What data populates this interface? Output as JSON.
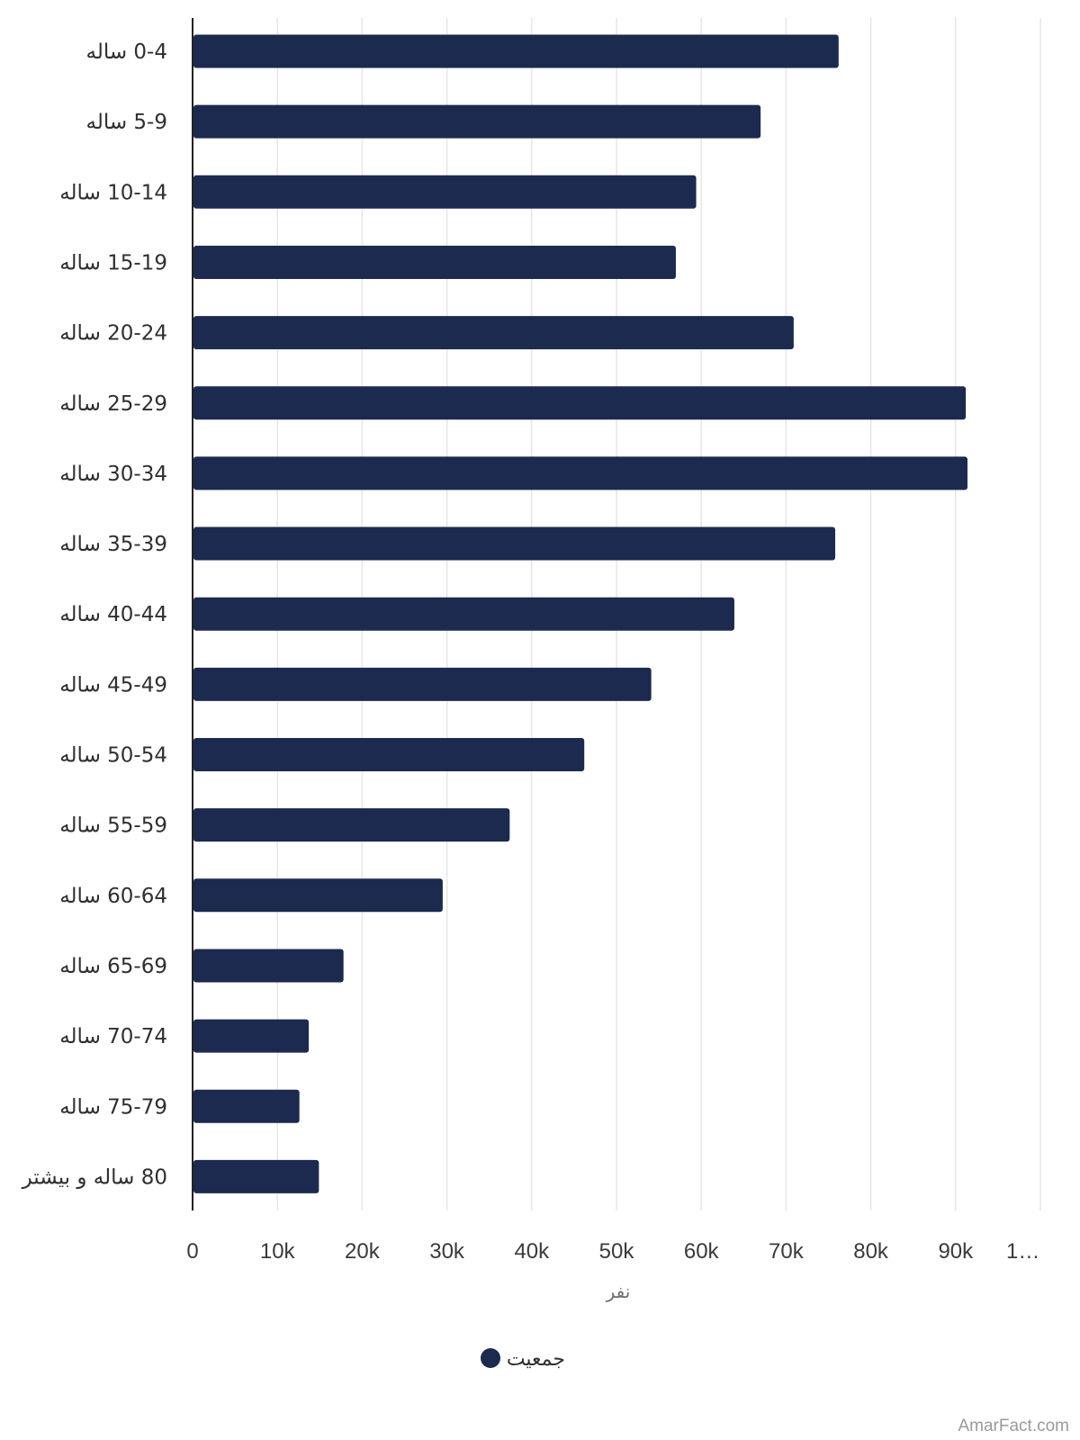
{
  "colors": {
    "bar": "#1b2a4e",
    "grid": "#e6e6e6",
    "axis": "#222222"
  },
  "chart_data": {
    "type": "bar",
    "orientation": "horizontal",
    "categories": [
      "0-4 ساله",
      "5-9 ساله",
      "10-14 ساله",
      "15-19 ساله",
      "20-24 ساله",
      "25-29 ساله",
      "30-34 ساله",
      "35-39 ساله",
      "40-44 ساله",
      "45-49 ساله",
      "50-54 ساله",
      "55-59 ساله",
      "60-64 ساله",
      "65-69 ساله",
      "70-74 ساله",
      "75-79 ساله",
      "80 ساله و بیشتر"
    ],
    "series": [
      {
        "name": "جمعیت",
        "color": "#1b2a4e",
        "values": [
          76200,
          67000,
          59400,
          57000,
          70900,
          91200,
          91400,
          75800,
          63900,
          54100,
          46200,
          37400,
          29500,
          17800,
          13700,
          12600,
          14900
        ]
      }
    ],
    "xlim": [
      0,
      100000
    ],
    "xticks": [
      "0",
      "10k",
      "20k",
      "30k",
      "40k",
      "50k",
      "60k",
      "70k",
      "80k",
      "90k",
      "1…"
    ],
    "xlabel": "نفر",
    "ylabel": "",
    "grid": "vertical",
    "legend_position": "bottom-center"
  },
  "footer": {
    "watermark": "AmarFact.com"
  }
}
